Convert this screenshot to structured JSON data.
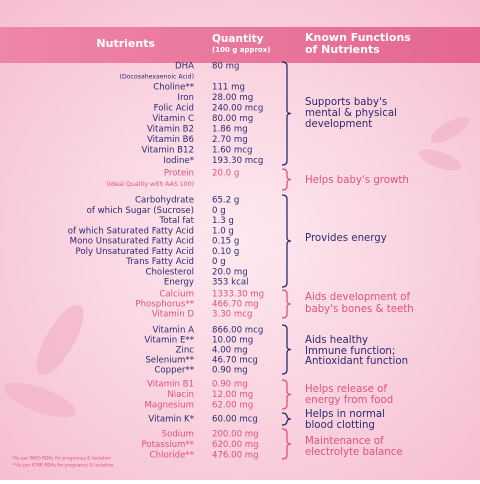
{
  "header": {
    "nutrients": "Nutrients",
    "quantity": "Quantity",
    "quantity_note": "(100 g approx)",
    "functions": [
      "Known Functions",
      "of Nutrients"
    ]
  },
  "groups": [
    {
      "rows": [
        {
          "nutrient": "DHA",
          "quantity": "80 mg"
        },
        {
          "note": "(Docosahexaenoic Acid)"
        },
        {
          "nutrient": "Choline**",
          "quantity": "111 mg"
        },
        {
          "nutrient": "Iron",
          "quantity": "28.00 mg"
        },
        {
          "nutrient": "Folic Acid",
          "quantity": "240.00 mcg"
        },
        {
          "nutrient": "Vitamin C",
          "quantity": "80.00 mg"
        },
        {
          "nutrient": "Vitamin B2",
          "quantity": "1.86 mg"
        },
        {
          "nutrient": "Vitamin B6",
          "quantity": "2.70 mg"
        },
        {
          "nutrient": "Vitamin B12",
          "quantity": "1.60 mcg"
        },
        {
          "nutrient": "Iodine*",
          "quantity": "193.30 mcg"
        }
      ],
      "function": [
        "Supports baby's",
        "mental & physical",
        "development"
      ]
    },
    {
      "rows": [
        {
          "nutrient": "Protein",
          "quantity": "20.0 g"
        },
        {
          "note": "(Ideal Quality with AAS 100)"
        }
      ],
      "function": [
        "Helps baby's growth"
      ]
    },
    {
      "rows": [
        {
          "nutrient": "Carbohydrate",
          "quantity": "65.2 g"
        },
        {
          "nutrient": "of which Sugar (Sucrose)",
          "quantity": "0 g"
        },
        {
          "nutrient": "Total fat",
          "quantity": "1.3 g"
        },
        {
          "nutrient": "of which Saturated Fatty Acid",
          "quantity": "1.0 g"
        },
        {
          "nutrient": "Mono Unsaturated Fatty Acid",
          "quantity": "0.15 g"
        },
        {
          "nutrient": "Poly Unsaturated Fatty Acid",
          "quantity": "0.10 g"
        },
        {
          "nutrient": "Trans Fatty Acid",
          "quantity": "0 g"
        },
        {
          "nutrient": "Cholesterol",
          "quantity": "20.0 mg"
        },
        {
          "nutrient": "Energy",
          "quantity": "353 kcal"
        }
      ],
      "function": [
        "Provides energy"
      ]
    },
    {
      "rows": [
        {
          "nutrient": "Calcium",
          "quantity": "1333.30 mg"
        },
        {
          "nutrient": "Phosphorus**",
          "quantity": "466.70 mg"
        },
        {
          "nutrient": "Vitamin D",
          "quantity": "3.30 mcg"
        }
      ],
      "function": [
        "Aids development of",
        "baby's bones & teeth"
      ]
    },
    {
      "rows": [
        {
          "nutrient": "Vitamin A",
          "quantity": "866.00 mcg"
        },
        {
          "nutrient": "Vitamin E**",
          "quantity": "10.00 mg"
        },
        {
          "nutrient": "Zinc",
          "quantity": "4.00 mg"
        },
        {
          "nutrient": "Selenium**",
          "quantity": "46.70 mcg"
        },
        {
          "nutrient": "Copper**",
          "quantity": "0.90 mg"
        }
      ],
      "function": [
        "Aids healthy",
        "Immune function;",
        "Antioxidant function"
      ]
    },
    {
      "rows": [
        {
          "nutrient": "Vitamin B1",
          "quantity": "0.90 mg"
        },
        {
          "nutrient": "Niacin",
          "quantity": "12.00 mg"
        },
        {
          "nutrient": "Magnesium",
          "quantity": "62.00 mg"
        }
      ],
      "function": [
        "Helps release of",
        "energy from food"
      ]
    },
    {
      "rows": [
        {
          "nutrient": "Vitamin K*",
          "quantity": "60.00 mcg"
        }
      ],
      "function": [
        "Helps in normal",
        "blood clotting"
      ]
    },
    {
      "rows": [
        {
          "nutrient": "Sodium",
          "quantity": "200.00 mg"
        },
        {
          "nutrient": "Potassium**",
          "quantity": "620.00 mg"
        },
        {
          "nutrient": "Chloride**",
          "quantity": "476.00 mg"
        }
      ],
      "function": [
        "Maintenance of",
        "electrolyte balance"
      ]
    }
  ],
  "footnotes": [
    "*As per WHO RDAs for pregnancy & lactation",
    "**As per ICMR RDAs for pregnancy & lactation"
  ]
}
